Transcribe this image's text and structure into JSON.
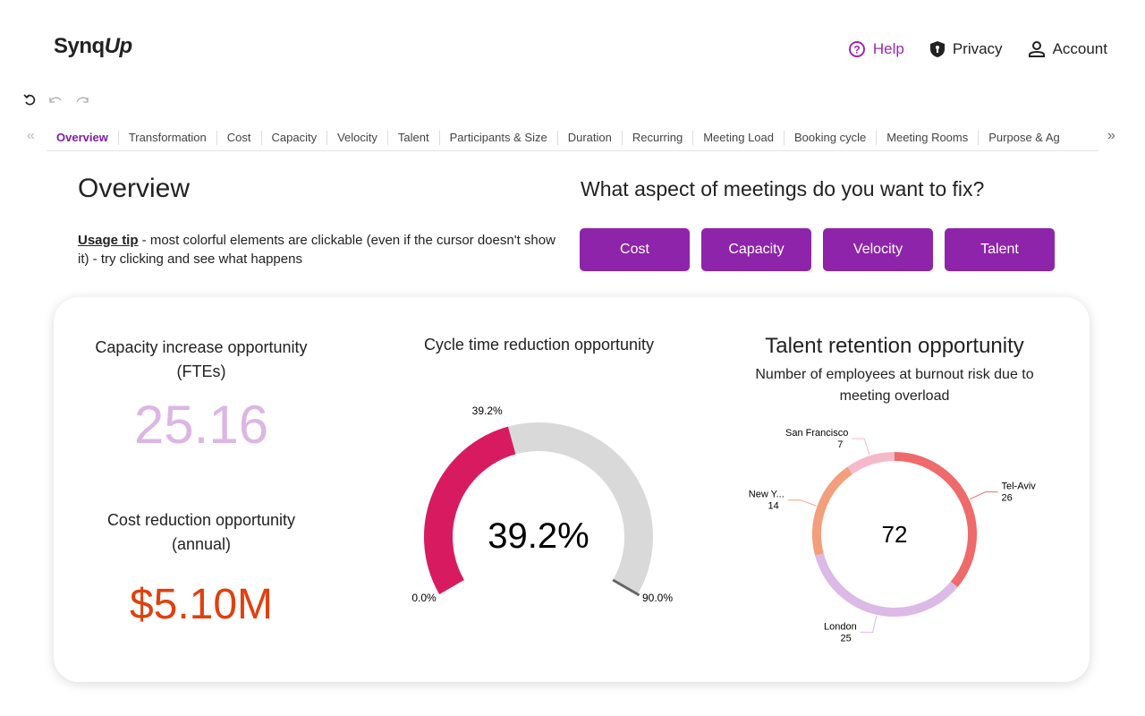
{
  "header": {
    "logo": {
      "text": "Synq",
      "accent": "Up"
    },
    "nav": [
      "Help",
      "Privacy",
      "Account"
    ]
  },
  "tabs": [
    "Overview",
    "Transformation",
    "Cost",
    "Capacity",
    "Velocity",
    "Talent",
    "Participants & Size",
    "Duration",
    "Recurring",
    "Meeting Load",
    "Booking cycle",
    "Meeting Rooms",
    "Purpose & Ag"
  ],
  "overview": {
    "title": "Overview",
    "tip_label": "Usage tip",
    "tip_text": " - most colorful elements are clickable (even if the cursor doesn't show it) - try clicking and see what happens",
    "question": "What aspect of meetings do you want to fix?",
    "buttons": [
      "Cost",
      "Capacity",
      "Velocity",
      "Talent"
    ]
  },
  "kpis": [
    {
      "title": "Capacity increase opportunity (FTEs)",
      "value": "25.16"
    },
    {
      "title": "Cost reduction opportunity (annual)",
      "value": "$5.10M"
    }
  ],
  "gauge": {
    "title": "Cycle time reduction opportunity",
    "value": 39.2,
    "value_label": "39.2%",
    "min": {
      "value": 0,
      "label": "0.0%"
    },
    "max": {
      "value": 90,
      "label": "90.0%"
    },
    "color": "#d81b60",
    "track_color": "#d9d9d9"
  },
  "donut": {
    "title": "Talent retention opportunity",
    "subtitle": "Number of employees at burnout risk due to meeting overload",
    "total": 72,
    "categories": [
      "Tel-Aviv",
      "London",
      "New Y...",
      "San Francisco"
    ],
    "values": [
      26,
      25,
      14,
      7
    ],
    "colors": [
      "#ef6a6a",
      "#dcb9e6",
      "#f39e7c",
      "#f5b9c9"
    ]
  }
}
